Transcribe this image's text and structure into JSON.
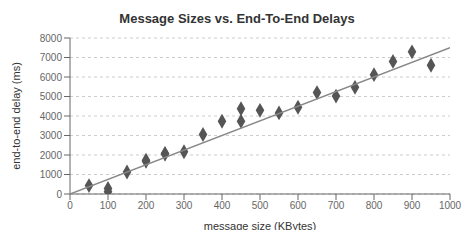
{
  "chart_data": {
    "type": "scatter",
    "title": "Message Sizes vs. End-To-End Delays",
    "xlabel": "message size (KBytes)",
    "ylabel": "end-to-end delay (ms)",
    "xlim": [
      0,
      1000
    ],
    "ylim": [
      0,
      8000
    ],
    "xticks": [
      0,
      100,
      200,
      300,
      400,
      500,
      600,
      700,
      800,
      900,
      1000
    ],
    "yticks": [
      0,
      1000,
      2000,
      3000,
      4000,
      5000,
      6000,
      7000,
      8000
    ],
    "grid": "y",
    "series": [
      {
        "type": "scatter",
        "color": "#555555",
        "marker": "diamond",
        "x": [
          50,
          100,
          100,
          150,
          200,
          200,
          250,
          250,
          300,
          350,
          400,
          450,
          450,
          500,
          550,
          600,
          650,
          700,
          750,
          800,
          850,
          900,
          950
        ],
        "values": [
          430,
          280,
          120,
          1130,
          1680,
          1730,
          2050,
          2080,
          2170,
          3050,
          3730,
          3730,
          4370,
          4290,
          4160,
          4450,
          5200,
          5020,
          5470,
          6120,
          6800,
          7290,
          6600
        ]
      },
      {
        "type": "line",
        "color": "#888888",
        "x": [
          0,
          1000
        ],
        "values": [
          0,
          7500
        ]
      }
    ]
  }
}
